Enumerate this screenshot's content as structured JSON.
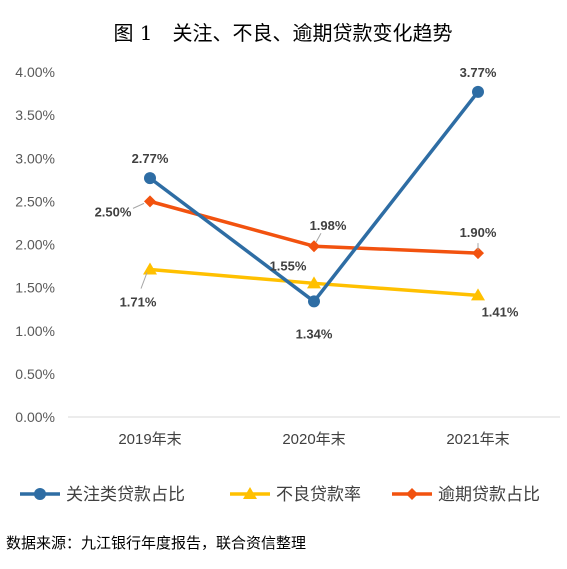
{
  "chart_data": {
    "type": "line",
    "title": "图 1　关注、不良、逾期贷款变化趋势",
    "categories": [
      "2019年末",
      "2020年末",
      "2021年末"
    ],
    "y_ticks": [
      "0.00%",
      "0.50%",
      "1.00%",
      "1.50%",
      "2.00%",
      "2.50%",
      "3.00%",
      "3.50%",
      "4.00%"
    ],
    "ylim": [
      0,
      4
    ],
    "grid": false,
    "legend_position": "bottom",
    "series": [
      {
        "name": "关注类贷款占比",
        "values": [
          2.77,
          1.34,
          3.77
        ],
        "labels": [
          "2.77%",
          "1.34%",
          "3.77%"
        ],
        "color": "#2E6DA4",
        "marker": "circle"
      },
      {
        "name": "不良贷款率",
        "values": [
          1.71,
          1.55,
          1.41
        ],
        "labels": [
          "1.71%",
          "1.55%",
          "1.41%"
        ],
        "color": "#FFC000",
        "marker": "triangle"
      },
      {
        "name": "逾期贷款占比",
        "values": [
          2.5,
          1.98,
          1.9
        ],
        "labels": [
          "2.50%",
          "1.98%",
          "1.90%"
        ],
        "color": "#F2520F",
        "marker": "diamond"
      }
    ],
    "source": "数据来源：九江银行年度报告，联合资信整理"
  }
}
